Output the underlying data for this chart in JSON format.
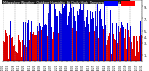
{
  "title": "Milwaukee Weather  Outdoor Humidity  At Daily High  Temperature  (Past Year)",
  "bar_color_blue": "#0000dd",
  "bar_color_red": "#dd0000",
  "legend_blue": "#0000ff",
  "legend_red": "#ff0000",
  "background_color": "#ffffff",
  "title_bg_color": "#222222",
  "title_text_color": "#ffffff",
  "grid_color": "#888888",
  "ylim": [
    0,
    100
  ],
  "n_bars": 365,
  "threshold": 55,
  "seed": 42
}
